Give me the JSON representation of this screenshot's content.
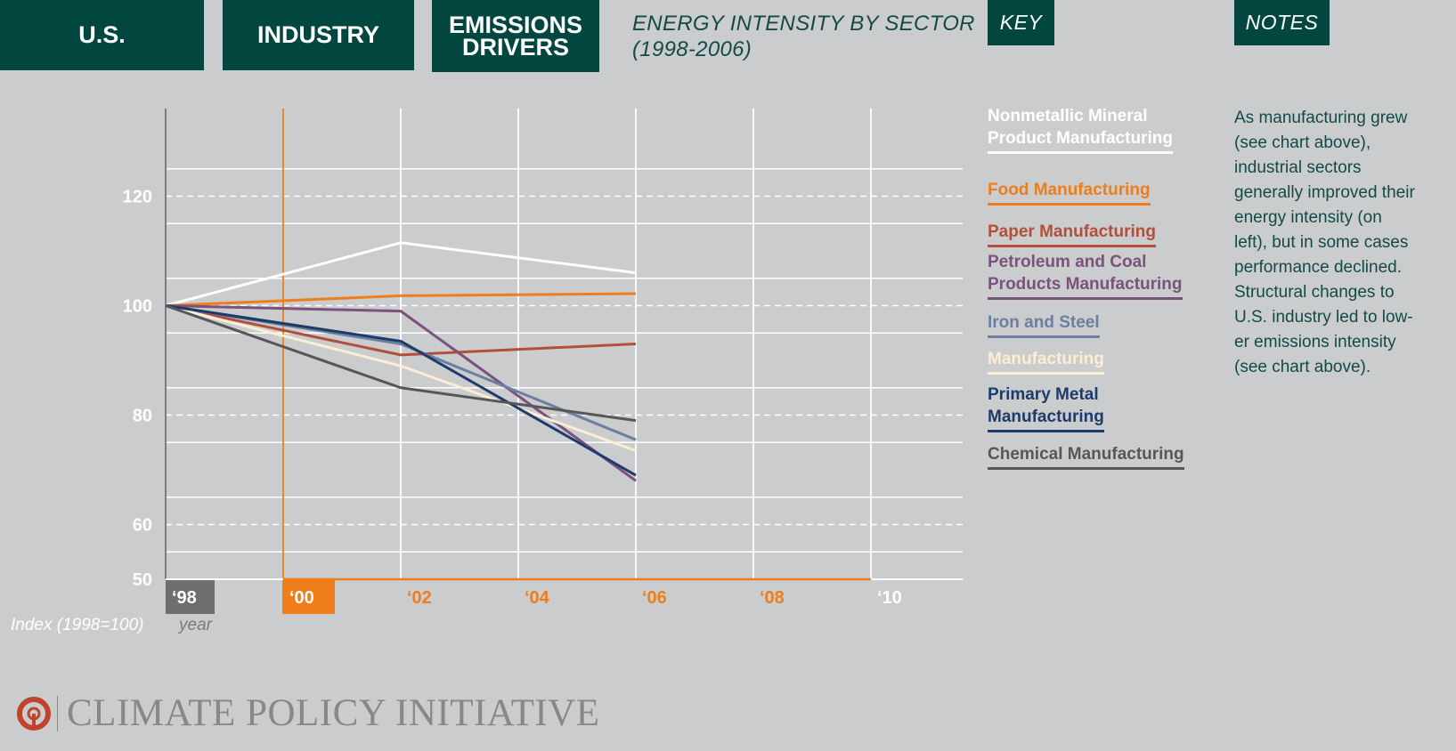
{
  "tabs": {
    "us": "U.S.",
    "industry": "INDUSTRY",
    "drivers_line1": "EMISSIONS",
    "drivers_line2": "DRIVERS"
  },
  "header": {
    "title_line1": "ENERGY INTENSITY BY SECTOR",
    "title_line2": "(1998-2006)",
    "key_label": "KEY",
    "notes_label": "NOTES"
  },
  "notes": {
    "text": "As manufacturing grew\n(see chart above),\nindustrial sectors\ngenerally improved their\nenergy intensity (on\nleft), but in some cases\nperformance declined.\nStructural changes to\nU.S. industry led to low-\ner emissions intensity\n(see chart above)."
  },
  "footer": {
    "logo_text": "CLIMATE POLICY INITIATIVE"
  },
  "colors": {
    "background": "#cbccce",
    "tab": "#02473f",
    "accent": "#ee7d1a",
    "grid": "#ffffff"
  },
  "chart_data": {
    "type": "line",
    "x": [
      1998,
      2000,
      2002,
      2004,
      2006
    ],
    "x_ticks": [
      {
        "value": 1998,
        "label": "‘98",
        "style": "gray-box"
      },
      {
        "value": 2000,
        "label": "‘00",
        "style": "orange-box"
      },
      {
        "value": 2002,
        "label": "‘02",
        "style": "orange-text"
      },
      {
        "value": 2004,
        "label": "‘04",
        "style": "orange-text"
      },
      {
        "value": 2006,
        "label": "‘06",
        "style": "orange-text"
      },
      {
        "value": 2008,
        "label": "‘08",
        "style": "orange-text"
      },
      {
        "value": 2010,
        "label": "‘10",
        "style": "white-text"
      }
    ],
    "y_ticks": [
      50,
      60,
      80,
      100,
      120
    ],
    "ylim": [
      50,
      135
    ],
    "xlim": [
      1998,
      2011.5
    ],
    "xlabel": "year",
    "ylabel": "Index (1998=100)",
    "grid": true,
    "highlight_year": 2000,
    "series": [
      {
        "name": "Nonmetallic Mineral Product Manufacturing",
        "legend_lines": [
          "Nonmetallic Mineral",
          "Product Manufacturing"
        ],
        "color": "#ffffff",
        "values": [
          100,
          null,
          111.5,
          null,
          106
        ]
      },
      {
        "name": "Food Manufacturing",
        "legend_lines": [
          "Food Manufacturing"
        ],
        "color": "#ee7d1a",
        "values": [
          100,
          null,
          101.8,
          null,
          102.2
        ]
      },
      {
        "name": "Paper Manufacturing",
        "legend_lines": [
          "Paper Manufacturing"
        ],
        "color": "#b1503a",
        "values": [
          100,
          null,
          91,
          null,
          93
        ]
      },
      {
        "name": "Petroleum and Coal Products Manufacturing",
        "legend_lines": [
          "Petroleum and Coal",
          "Products Manufacturing"
        ],
        "color": "#7a527c",
        "values": [
          100,
          null,
          99,
          null,
          68
        ]
      },
      {
        "name": "Iron and Steel",
        "legend_lines": [
          "Iron and Steel"
        ],
        "color": "#6b7f9e",
        "values": [
          100,
          null,
          93,
          null,
          75.5
        ]
      },
      {
        "name": "Manufacturing",
        "legend_lines": [
          "Manufacturing"
        ],
        "color": "#fbeed3",
        "values": [
          100,
          null,
          89,
          null,
          73.5
        ]
      },
      {
        "name": "Primary Metal Manufacturing",
        "legend_lines": [
          "Primary Metal",
          "Manufacturing"
        ],
        "color": "#1d3b6b",
        "values": [
          100,
          null,
          93.5,
          null,
          69
        ]
      },
      {
        "name": "Chemical Manufacturing",
        "legend_lines": [
          "Chemical Manufacturing"
        ],
        "color": "#555758",
        "values": [
          100,
          null,
          85,
          null,
          79
        ]
      }
    ]
  }
}
